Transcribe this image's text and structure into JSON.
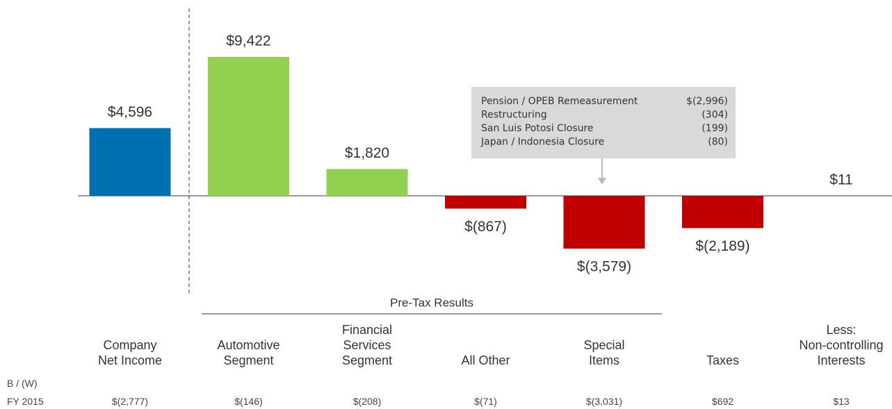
{
  "chart_data": {
    "type": "bar",
    "categories": [
      "Company\nNet Income",
      "Automotive\nSegment",
      "Financial\nServices\nSegment",
      "All Other",
      "Special\nItems",
      "Taxes",
      "Less:\nNon-controlling\nInterests"
    ],
    "values": [
      4596,
      9422,
      1820,
      -867,
      -3579,
      -2189,
      11
    ],
    "value_labels": [
      "$4,596",
      "$9,422",
      "$1,820",
      "$(867)",
      "$(3,579)",
      "$(2,189)",
      "$11"
    ],
    "colors": [
      "#0070b0",
      "#92d050",
      "#92d050",
      "#c00000",
      "#c00000",
      "#c00000",
      "#c00000"
    ],
    "ylim": [
      -6000,
      12000
    ],
    "group_label": "Pre-Tax Results",
    "callout": {
      "rows": [
        [
          "Pension / OPEB Remeasurement",
          "$(2,996)"
        ],
        [
          "Restructuring",
          "(304)"
        ],
        [
          "San Luis Potosi Closure",
          "(199)"
        ],
        [
          "Japan / Indonesia Closure",
          "(80)"
        ]
      ]
    },
    "comparison": {
      "title": "B / (W)",
      "period": "FY 2015",
      "labels": [
        "$(2,777)",
        "$(146)",
        "$(208)",
        "$(71)",
        "$(3,031)",
        "$692",
        "$13"
      ]
    }
  }
}
